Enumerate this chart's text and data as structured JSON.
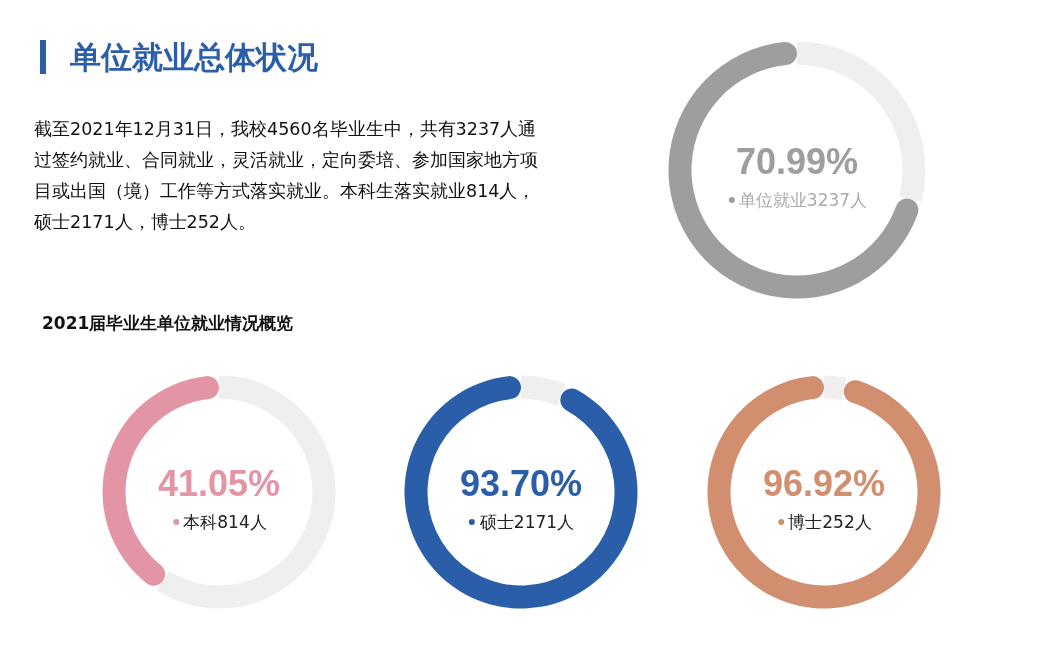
{
  "chart_data": [
    {
      "type": "other",
      "title": "单位就业总体状况",
      "annotations": [
        "截至2021年12月31日，我校4560名毕业生中，共有3237人通过签约就业、合同就业，灵活就业，定向委培、参加国家地方项目或出国（境）工作等方式落实就业。本科生落实就业814人，硕士2171人，博士252人。"
      ]
    },
    {
      "type": "donut",
      "categories": [
        "单位就业3237人",
        null
      ],
      "values": [
        70.99,
        29.01
      ],
      "colors": [
        "#9d9e9e",
        "#efefef"
      ],
      "value_labels": [
        "70.99%",
        null
      ]
    },
    {
      "type": "other",
      "title": "2021届毕业生单位就业情况概览"
    },
    {
      "type": "donut",
      "categories": [
        "本科814人",
        null
      ],
      "values": [
        41.05,
        58.95
      ],
      "colors": [
        "#e395a5",
        "#efefef"
      ],
      "value_labels": [
        "41.05%",
        null
      ]
    },
    {
      "type": "donut",
      "categories": [
        "硕士2171人",
        null
      ],
      "values": [
        93.7,
        6.3
      ],
      "colors": [
        "#2a5ea8",
        "#efefef"
      ],
      "value_labels": [
        "93.70%",
        null
      ]
    },
    {
      "type": "donut",
      "categories": [
        "博士252人",
        null
      ],
      "values": [
        96.92,
        3.08
      ],
      "colors": [
        "#d28f6f",
        "#efefef"
      ],
      "value_labels": [
        "96.92%",
        null
      ]
    }
  ]
}
